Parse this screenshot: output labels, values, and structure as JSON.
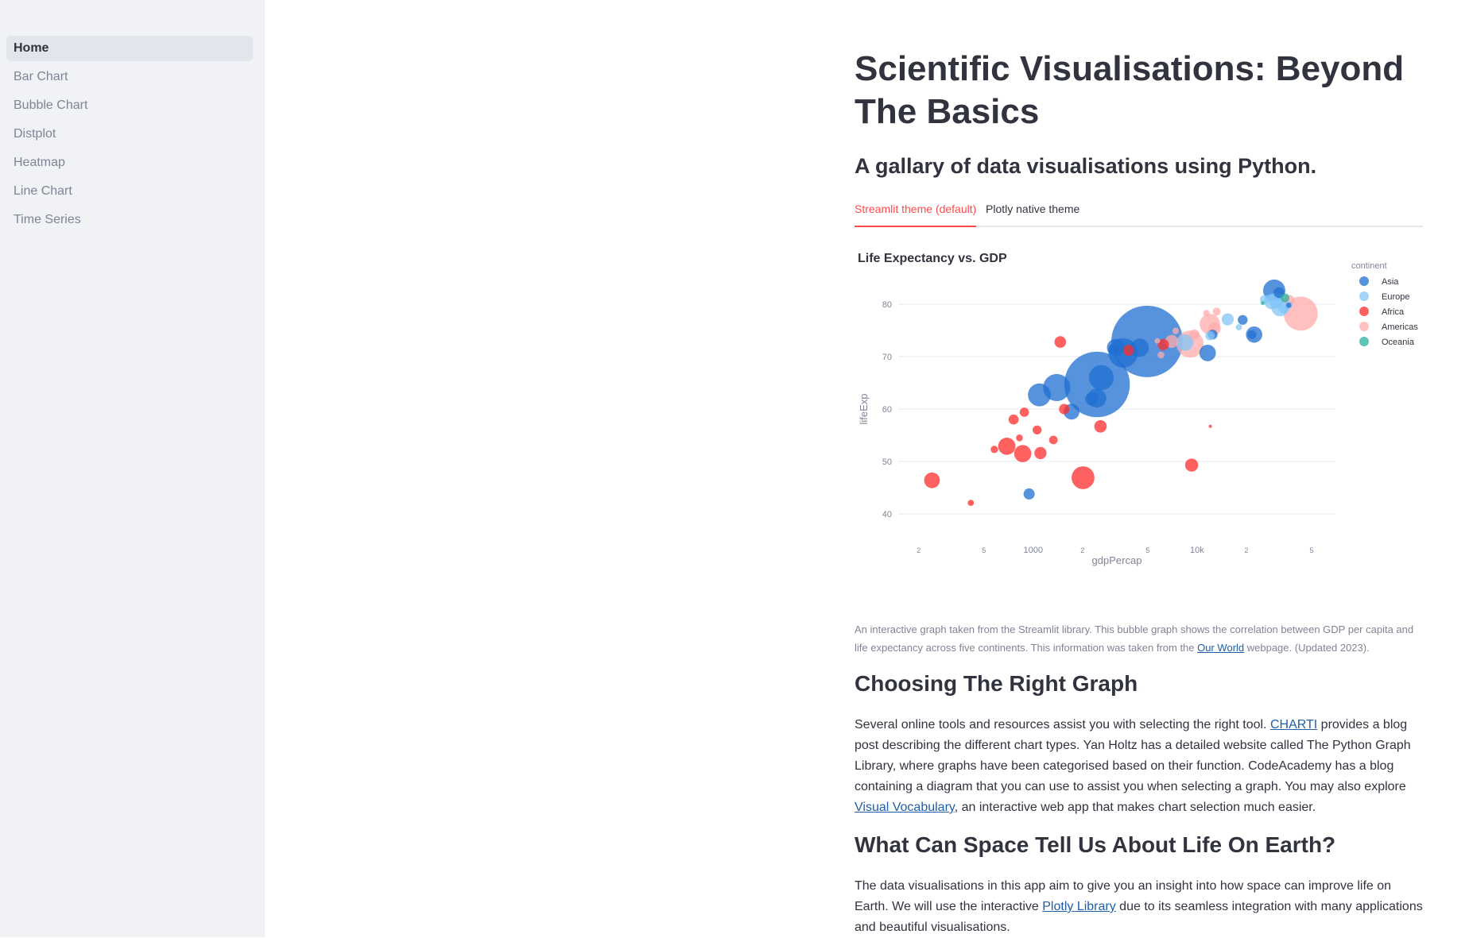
{
  "sidebar": {
    "items": [
      {
        "label": "Home",
        "active": true
      },
      {
        "label": "Bar Chart"
      },
      {
        "label": "Bubble Chart"
      },
      {
        "label": "Distplot"
      },
      {
        "label": "Heatmap"
      },
      {
        "label": "Line Chart"
      },
      {
        "label": "Time Series"
      }
    ]
  },
  "main": {
    "title": "Scientific Visualisations: Beyond The Basics",
    "subtitle": "A gallary of data visualisations using Python.",
    "tabs": [
      {
        "label": "Streamlit theme (default)",
        "active": true
      },
      {
        "label": "Plotly native theme"
      }
    ],
    "caption": {
      "before": "An interactive graph taken from the Streamlit library. This bubble graph shows the correlation between GDP per capita and life expectancy across five continents. This information was taken from the ",
      "link": "Our World",
      "after": " webpage. (Updated 2023)."
    },
    "section1": {
      "heading": "Choosing The Right Graph",
      "p1": "Several online tools and resources assist you with selecting the right tool. ",
      "link1": "CHARTI",
      "p2": " provides a blog post describing the different chart types. Yan Holtz has a detailed website called The Python Graph Library, where graphs have been categorised based on their function. CodeAcademy has a blog containing a diagram that you can use to assist you when selecting a graph. You may also explore ",
      "link2": "Visual Vocabulary",
      "p3": ", an interactive web app that makes chart selection much easier."
    },
    "section2": {
      "heading": "What Can Space Tell Us About Life On Earth?",
      "p1": "The data visualisations in this app aim to give you an insight into how space can improve life on Earth. We will use the interactive ",
      "link1": "Plotly Library",
      "p2": " due to its seamless integration with many applications and beautiful visualisations."
    }
  },
  "colors": {
    "Asia": "#1f6fd1",
    "Europe": "#83c5f7",
    "Africa": "#ff2b2b",
    "Americas": "#ffabab",
    "Oceania": "#29b09d"
  },
  "chart_data": {
    "type": "scatter",
    "title": "Life Expectancy vs. GDP",
    "xlabel": "gdpPercap",
    "ylabel": "lifeExp",
    "xscale": "log",
    "xlim": [
      150,
      70000
    ],
    "ylim": [
      35,
      85
    ],
    "x_ticks": [
      {
        "v": 200,
        "label": "2"
      },
      {
        "v": 500,
        "label": "5"
      },
      {
        "v": 1000,
        "label": "1000"
      },
      {
        "v": 2000,
        "label": "2"
      },
      {
        "v": 5000,
        "label": "5"
      },
      {
        "v": 10000,
        "label": "10k"
      },
      {
        "v": 20000,
        "label": "2"
      },
      {
        "v": 50000,
        "label": "5"
      }
    ],
    "y_ticks": [
      40,
      50,
      60,
      70,
      80
    ],
    "legend_title": "continent",
    "legend_position": "top-right",
    "series": [
      {
        "name": "Asia",
        "color": "#1f6fd1",
        "points": [
          [
            4959,
            72.9,
            1319
          ],
          [
            2452,
            64.7,
            1110
          ],
          [
            3541,
            70.7,
            223
          ],
          [
            1391,
            64.1,
            190
          ],
          [
            2605,
            66.0,
            160
          ],
          [
            1091,
            62.7,
            135
          ],
          [
            29597,
            82.6,
            127
          ],
          [
            3190,
            71.7,
            80
          ],
          [
            2442,
            62.1,
            93
          ],
          [
            4471,
            71.7,
            85
          ],
          [
            11606,
            70.7,
            70
          ],
          [
            1714,
            59.5,
            65
          ],
          [
            31656,
            82.2,
            30
          ],
          [
            944,
            43.8,
            32
          ],
          [
            22316,
            74.2,
            69
          ],
          [
            12452,
            74.2,
            25
          ],
          [
            21655,
            74.2,
            20
          ],
          [
            3095,
            71.4,
            28
          ],
          [
            2281,
            61.9,
            46
          ],
          [
            36319,
            79.8,
            7
          ],
          [
            19000,
            77.0,
            25
          ]
        ]
      },
      {
        "name": "Europe",
        "color": "#83c5f7",
        "points": [
          [
            32170,
            79.4,
            82
          ],
          [
            30470,
            80.7,
            61
          ],
          [
            28569,
            80.5,
            60
          ],
          [
            33692,
            79.5,
            40
          ],
          [
            8458,
            72.7,
            71
          ],
          [
            15390,
            77.1,
            38
          ],
          [
            25768,
            80.9,
            20
          ],
          [
            36126,
            79.8,
            16
          ],
          [
            18009,
            75.6,
            10
          ],
          [
            12000,
            74.0,
            22
          ]
        ]
      },
      {
        "name": "Africa",
        "color": "#ff2b2b",
        "points": [
          [
            2014,
            46.9,
            135
          ],
          [
            6224,
            72.3,
            33
          ],
          [
            690,
            52.9,
            77
          ],
          [
            1463,
            72.8,
            35
          ],
          [
            863,
            51.5,
            76
          ],
          [
            9270,
            49.3,
            44
          ],
          [
            2574,
            56.7,
            40
          ],
          [
            1107,
            51.6,
            38
          ],
          [
            759,
            58.0,
            26
          ],
          [
            3820,
            71.2,
            31
          ],
          [
            241,
            46.4,
            64
          ],
          [
            1056,
            56.0,
            21
          ],
          [
            1328,
            54.1,
            19
          ],
          [
            579,
            52.3,
            14
          ],
          [
            883,
            59.4,
            22
          ],
          [
            1545,
            60.0,
            28
          ],
          [
            416,
            42.1,
            10
          ],
          [
            824,
            54.5,
            12
          ],
          [
            12057,
            56.7,
            1.7
          ]
        ]
      },
      {
        "name": "Americas",
        "color": "#ffabab",
        "points": [
          [
            42952,
            78.2,
            301
          ],
          [
            9065,
            72.4,
            190
          ],
          [
            11978,
            76.2,
            108
          ],
          [
            36319,
            80.7,
            33
          ],
          [
            12779,
            75.3,
            40
          ],
          [
            7007,
            72.9,
            44
          ],
          [
            13172,
            78.6,
            16
          ],
          [
            7409,
            74.9,
            11
          ],
          [
            5728,
            73.0,
            8
          ],
          [
            9646,
            74.2,
            28
          ],
          [
            6025,
            70.3,
            12
          ],
          [
            11416,
            78.3,
            11
          ]
        ]
      },
      {
        "name": "Oceania",
        "color": "#29b09d",
        "points": [
          [
            34435,
            81.2,
            20
          ],
          [
            25185,
            80.2,
            4
          ]
        ]
      }
    ]
  }
}
